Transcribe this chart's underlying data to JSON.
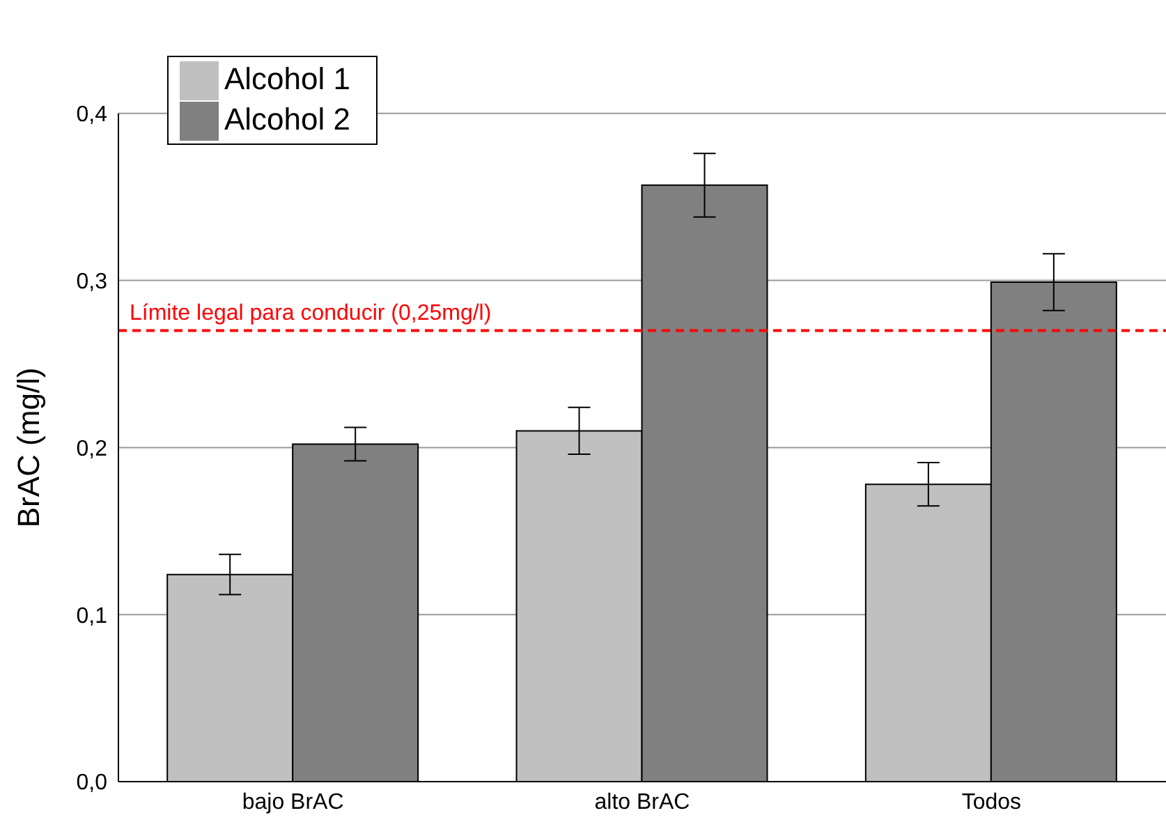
{
  "chart_data": {
    "type": "bar",
    "ylabel": "BrAC (mg/l)",
    "categories": [
      "bajo BrAC",
      "alto BrAC",
      "Todos"
    ],
    "series": [
      {
        "name": "Alcohol 1",
        "color": "#c0c0c0",
        "values": [
          0.124,
          0.21,
          0.178
        ],
        "errors": [
          0.012,
          0.014,
          0.013
        ]
      },
      {
        "name": "Alcohol 2",
        "color": "#808080",
        "values": [
          0.202,
          0.357,
          0.299
        ],
        "errors": [
          0.01,
          0.019,
          0.017
        ]
      }
    ],
    "ylim": [
      0,
      0.4
    ],
    "yticks": [
      {
        "value": 0,
        "label": "0,0"
      },
      {
        "value": 0.1,
        "label": "0,1"
      },
      {
        "value": 0.2,
        "label": "0,2"
      },
      {
        "value": 0.3,
        "label": "0,3"
      },
      {
        "value": 0.4,
        "label": "0,4"
      }
    ],
    "ref_lines": [
      {
        "axis": "y",
        "value": 0.27,
        "label": "Límite legal para conducir (0,25mg/l)",
        "color": "#ff0000",
        "line_style": "dashed"
      }
    ],
    "grid": "y",
    "legend": "top left"
  }
}
